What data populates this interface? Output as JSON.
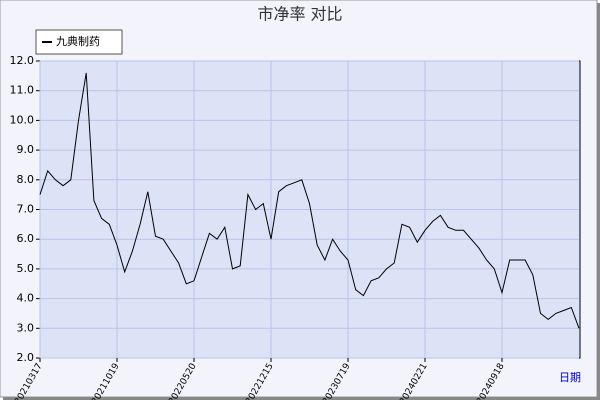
{
  "chart_data": {
    "type": "line",
    "title": "市净率  对比",
    "x_label": "日期",
    "categories": [
      "20210317",
      null,
      null,
      null,
      null,
      null,
      null,
      null,
      null,
      null,
      "20211019",
      null,
      null,
      null,
      null,
      null,
      null,
      null,
      null,
      null,
      "20220520",
      null,
      null,
      null,
      null,
      null,
      null,
      null,
      null,
      null,
      "20221215",
      null,
      null,
      null,
      null,
      null,
      null,
      null,
      null,
      null,
      "20230719",
      null,
      null,
      null,
      null,
      null,
      null,
      null,
      null,
      null,
      "20240221",
      null,
      null,
      null,
      null,
      null,
      null,
      null,
      null,
      null,
      "20240918",
      null,
      null,
      null,
      null,
      null,
      null,
      null,
      null,
      null,
      null
    ],
    "series": [
      {
        "name": "九典制药",
        "color": "#000000",
        "values": [
          7.5,
          8.3,
          8.0,
          7.8,
          8.0,
          10.0,
          11.6,
          7.3,
          6.7,
          6.5,
          5.8,
          4.9,
          5.6,
          6.5,
          7.6,
          6.1,
          6.0,
          5.6,
          5.2,
          4.5,
          4.6,
          5.4,
          6.2,
          6.0,
          6.4,
          5.0,
          5.1,
          7.5,
          7.0,
          7.2,
          6.0,
          7.6,
          7.8,
          7.9,
          8.0,
          7.2,
          5.8,
          5.3,
          6.0,
          5.6,
          5.3,
          4.3,
          4.1,
          4.6,
          4.7,
          5.0,
          5.2,
          6.5,
          6.4,
          5.9,
          6.3,
          6.6,
          6.8,
          6.4,
          6.3,
          6.3,
          6.0,
          5.7,
          5.3,
          5.0,
          4.2,
          5.3,
          5.3,
          5.3,
          4.8,
          3.5,
          3.3,
          3.5,
          3.6,
          3.7,
          3.0
        ]
      }
    ],
    "ylim": [
      2,
      12
    ],
    "yticks": [
      {
        "value": 2,
        "label": "2.0"
      },
      {
        "value": 3,
        "label": "3.0"
      },
      {
        "value": 4,
        "label": "4.0"
      },
      {
        "value": 5,
        "label": "5.0"
      },
      {
        "value": 6,
        "label": "6.0"
      },
      {
        "value": 7,
        "label": "7.0"
      },
      {
        "value": 8,
        "label": "8.0"
      },
      {
        "value": 9,
        "label": "9.0"
      },
      {
        "value": 10,
        "label": "10.0"
      },
      {
        "value": 11,
        "label": "11.0"
      },
      {
        "value": 12,
        "label": "12.0"
      }
    ],
    "grid": true,
    "legend": "top-left"
  }
}
